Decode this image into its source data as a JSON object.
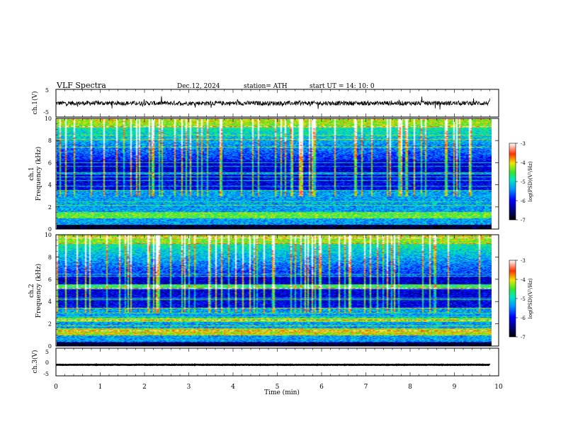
{
  "header": {
    "title": "VLF  Spectra",
    "date": "Dec.12, 2024",
    "station": "station= ATH",
    "start": "start  UT  =   14: 10: 0"
  },
  "chart_data": [
    {
      "type": "line",
      "name": "waveform-ch1",
      "ylabel": "ch.1(V)",
      "ylim": [
        -5,
        5
      ],
      "yticks": [
        "5",
        "-5"
      ],
      "xlim": [
        0,
        10
      ],
      "series": [
        {
          "values_range": [
            -1.0,
            1.0
          ],
          "mean": 0
        }
      ]
    },
    {
      "type": "heatmap",
      "name": "spectrogram-ch1",
      "ylabel": "ch.1\nFrequency  (kHz)",
      "ylim": [
        0,
        10
      ],
      "yticks": [
        "0",
        "2",
        "4",
        "6",
        "8",
        "10"
      ],
      "xlim": [
        0,
        9.8
      ],
      "colorbar": {
        "label": "log(PSD)(V²/Hz)",
        "range": [
          -7,
          -3
        ],
        "ticks": [
          "-3",
          "-4",
          "-5",
          "-6",
          "-7"
        ]
      }
    },
    {
      "type": "heatmap",
      "name": "spectrogram-ch2",
      "ylabel": "ch.2\nFrequency  (kHz)",
      "ylim": [
        0,
        10
      ],
      "yticks": [
        "0",
        "2",
        "4",
        "6",
        "8",
        "10"
      ],
      "xlim": [
        0,
        9.8
      ],
      "colorbar": {
        "label": "log(PSD)(V²/Hz)",
        "range": [
          -7,
          -3
        ],
        "ticks": [
          "-3",
          "-4",
          "-5",
          "-6",
          "-7"
        ]
      }
    },
    {
      "type": "line",
      "name": "waveform-ch3",
      "ylabel": "ch.3(V)",
      "ylim": [
        -5,
        5
      ],
      "yticks": [
        "5",
        "0",
        "-5"
      ],
      "xlim": [
        0,
        10
      ],
      "series": [
        {
          "values_range": [
            -1.2,
            -0.8
          ],
          "mean": -1
        }
      ]
    }
  ],
  "xaxis": {
    "label": "Time  (min)",
    "ticks": [
      "0",
      "1",
      "2",
      "3",
      "4",
      "5",
      "6",
      "7",
      "8",
      "9",
      "10"
    ],
    "range": [
      0,
      10
    ]
  },
  "colors": {
    "spectrogram_scale": [
      "#00007a",
      "#0000ff",
      "#0096ff",
      "#00e6c8",
      "#32e632",
      "#f0e600",
      "#ff3200",
      "#ffffff"
    ]
  }
}
